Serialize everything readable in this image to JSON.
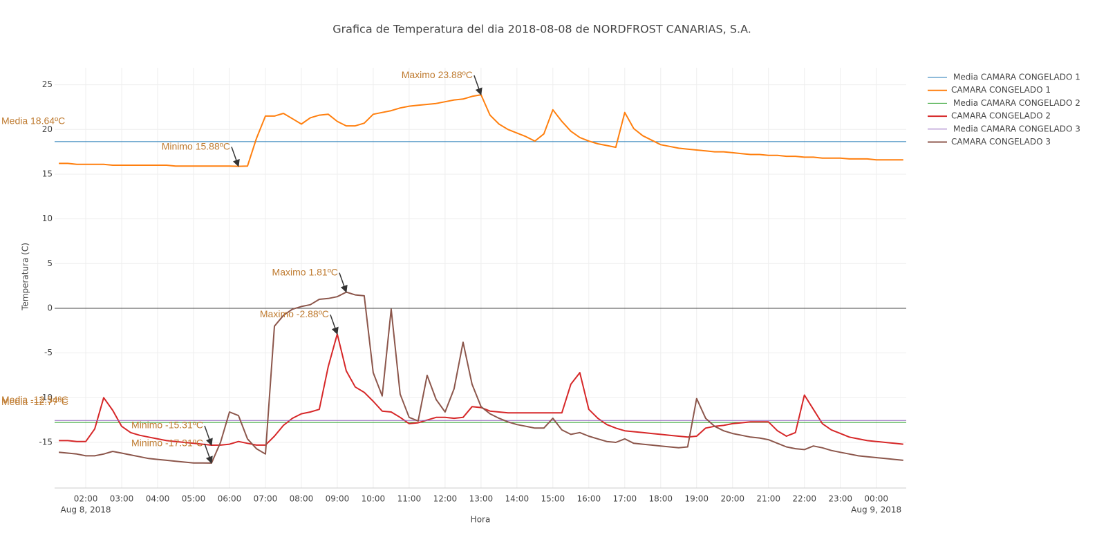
{
  "chart_data": {
    "type": "line",
    "title": "Grafica de Temperatura del dia 2018-08-08 de NORDFROST CANARIAS, S.A.",
    "xlabel": "Hora",
    "ylabel": "Temperatura (C)",
    "x": [
      "2018-08-08 01:15",
      "2018-08-08 01:30",
      "2018-08-08 01:45",
      "2018-08-08 02:00",
      "2018-08-08 02:15",
      "2018-08-08 02:30",
      "2018-08-08 02:45",
      "2018-08-08 03:00",
      "2018-08-08 03:15",
      "2018-08-08 03:30",
      "2018-08-08 03:45",
      "2018-08-08 04:00",
      "2018-08-08 04:15",
      "2018-08-08 04:30",
      "2018-08-08 04:45",
      "2018-08-08 05:00",
      "2018-08-08 05:15",
      "2018-08-08 05:30",
      "2018-08-08 05:45",
      "2018-08-08 06:00",
      "2018-08-08 06:15",
      "2018-08-08 06:30",
      "2018-08-08 06:45",
      "2018-08-08 07:00",
      "2018-08-08 07:15",
      "2018-08-08 07:30",
      "2018-08-08 07:45",
      "2018-08-08 08:00",
      "2018-08-08 08:15",
      "2018-08-08 08:30",
      "2018-08-08 08:45",
      "2018-08-08 09:00",
      "2018-08-08 09:15",
      "2018-08-08 09:30",
      "2018-08-08 09:45",
      "2018-08-08 10:00",
      "2018-08-08 10:15",
      "2018-08-08 10:30",
      "2018-08-08 10:45",
      "2018-08-08 11:00",
      "2018-08-08 11:15",
      "2018-08-08 11:30",
      "2018-08-08 11:45",
      "2018-08-08 12:00",
      "2018-08-08 12:15",
      "2018-08-08 12:30",
      "2018-08-08 12:45",
      "2018-08-08 13:00",
      "2018-08-08 13:15",
      "2018-08-08 13:30",
      "2018-08-08 13:45",
      "2018-08-08 14:00",
      "2018-08-08 14:15",
      "2018-08-08 14:30",
      "2018-08-08 14:45",
      "2018-08-08 15:00",
      "2018-08-08 15:15",
      "2018-08-08 15:30",
      "2018-08-08 15:45",
      "2018-08-08 16:00",
      "2018-08-08 16:15",
      "2018-08-08 16:30",
      "2018-08-08 16:45",
      "2018-08-08 17:00",
      "2018-08-08 17:15",
      "2018-08-08 17:30",
      "2018-08-08 17:45",
      "2018-08-08 18:00",
      "2018-08-08 18:15",
      "2018-08-08 18:30",
      "2018-08-08 18:45",
      "2018-08-08 19:00",
      "2018-08-08 19:15",
      "2018-08-08 19:30",
      "2018-08-08 19:45",
      "2018-08-08 20:00",
      "2018-08-08 20:15",
      "2018-08-08 20:30",
      "2018-08-08 20:45",
      "2018-08-08 21:00",
      "2018-08-08 21:15",
      "2018-08-08 21:30",
      "2018-08-08 21:45",
      "2018-08-08 22:00",
      "2018-08-08 22:15",
      "2018-08-08 22:30",
      "2018-08-08 22:45",
      "2018-08-08 23:00",
      "2018-08-08 23:15",
      "2018-08-08 23:30",
      "2018-08-08 23:45",
      "2018-08-09 00:00",
      "2018-08-09 00:15",
      "2018-08-09 00:30",
      "2018-08-09 00:45"
    ],
    "series": [
      {
        "name": "Media CAMARA CONGELADO 1",
        "color": "#1f77b4",
        "value": 18.64
      },
      {
        "name": "CAMARA CONGELADO 1",
        "color": "#ff7f0e",
        "values": [
          16.2,
          16.2,
          16.1,
          16.1,
          16.1,
          16.1,
          16.0,
          16.0,
          16.0,
          16.0,
          16.0,
          16.0,
          16.0,
          15.9,
          15.9,
          15.9,
          15.9,
          15.9,
          15.9,
          15.9,
          15.88,
          15.9,
          19.0,
          21.5,
          21.5,
          21.8,
          21.2,
          20.6,
          21.3,
          21.6,
          21.7,
          20.9,
          20.4,
          20.4,
          20.7,
          21.7,
          21.9,
          22.1,
          22.4,
          22.6,
          22.7,
          22.8,
          22.9,
          23.1,
          23.3,
          23.4,
          23.7,
          23.88,
          21.6,
          20.6,
          20.0,
          19.6,
          19.2,
          18.7,
          19.5,
          22.2,
          20.9,
          19.8,
          19.1,
          18.7,
          18.4,
          18.2,
          18.0,
          21.9,
          20.1,
          19.3,
          18.8,
          18.3,
          18.1,
          17.9,
          17.8,
          17.7,
          17.6,
          17.5,
          17.5,
          17.4,
          17.3,
          17.2,
          17.2,
          17.1,
          17.1,
          17.0,
          17.0,
          16.9,
          16.9,
          16.8,
          16.8,
          16.8,
          16.7,
          16.7,
          16.7,
          16.6,
          16.6,
          16.6,
          16.6
        ]
      },
      {
        "name": "Media CAMARA CONGELADO 2",
        "color": "#2ca02c",
        "value": -12.77
      },
      {
        "name": "CAMARA CONGELADO 2",
        "color": "#d62728",
        "values": [
          -14.8,
          -14.8,
          -14.9,
          -14.9,
          -13.5,
          -10.0,
          -11.4,
          -13.2,
          -13.9,
          -14.2,
          -14.4,
          -14.6,
          -14.8,
          -14.9,
          -15.0,
          -15.1,
          -15.2,
          -15.31,
          -15.3,
          -15.2,
          -14.9,
          -15.1,
          -15.3,
          -15.3,
          -14.3,
          -13.1,
          -12.3,
          -11.8,
          -11.6,
          -11.3,
          -6.5,
          -2.88,
          -7.0,
          -8.8,
          -9.4,
          -10.4,
          -11.5,
          -11.6,
          -12.2,
          -12.9,
          -12.8,
          -12.5,
          -12.2,
          -12.2,
          -12.3,
          -12.2,
          -11.0,
          -11.1,
          -11.5,
          -11.6,
          -11.7,
          -11.7,
          -11.7,
          -11.7,
          -11.7,
          -11.7,
          -11.7,
          -8.5,
          -7.2,
          -11.3,
          -12.3,
          -13.0,
          -13.4,
          -13.7,
          -13.8,
          -13.9,
          -14.0,
          -14.1,
          -14.2,
          -14.3,
          -14.4,
          -14.3,
          -13.4,
          -13.2,
          -13.1,
          -12.9,
          -12.8,
          -12.7,
          -12.7,
          -12.7,
          -13.7,
          -14.3,
          -13.9,
          -9.7,
          -11.3,
          -12.9,
          -13.6,
          -14.0,
          -14.4,
          -14.6,
          -14.8,
          -14.9,
          -15.0,
          -15.1,
          -15.2
        ]
      },
      {
        "name": "Media CAMARA CONGELADO 3",
        "color": "#9467bd",
        "value": -12.54
      },
      {
        "name": "CAMARA CONGELADO 3",
        "color": "#8c564b",
        "values": [
          -16.1,
          -16.2,
          -16.3,
          -16.5,
          -16.5,
          -16.3,
          -16.0,
          -16.2,
          -16.4,
          -16.6,
          -16.8,
          -16.9,
          -17.0,
          -17.1,
          -17.2,
          -17.3,
          -17.3,
          -17.31,
          -15.0,
          -11.6,
          -12.0,
          -14.6,
          -15.7,
          -16.3,
          -2.0,
          -0.8,
          -0.1,
          0.2,
          0.4,
          1.0,
          1.1,
          1.3,
          1.81,
          1.5,
          1.4,
          -7.2,
          -9.8,
          -0.1,
          -9.6,
          -12.2,
          -12.6,
          -7.5,
          -10.2,
          -11.6,
          -9.0,
          -3.8,
          -8.5,
          -11.0,
          -11.8,
          -12.3,
          -12.7,
          -13.0,
          -13.2,
          -13.4,
          -13.4,
          -12.3,
          -13.6,
          -14.1,
          -13.9,
          -14.3,
          -14.6,
          -14.9,
          -15.0,
          -14.6,
          -15.1,
          -15.2,
          -15.3,
          -15.4,
          -15.5,
          -15.6,
          -15.5,
          -10.1,
          -12.3,
          -13.2,
          -13.7,
          -14.0,
          -14.2,
          -14.4,
          -14.5,
          -14.7,
          -15.1,
          -15.5,
          -15.7,
          -15.8,
          -15.4,
          -15.6,
          -15.9,
          -16.1,
          -16.3,
          -16.5,
          -16.6,
          -16.7,
          -16.8,
          -16.9,
          -17.0
        ]
      }
    ],
    "annotations": [
      {
        "text": "Media 18.64ºC",
        "y": 18.64
      },
      {
        "text": "Minimo 15.88ºC",
        "x": "2018-08-08 06:15",
        "y": 15.88
      },
      {
        "text": "Maximo 23.88ºC",
        "x": "2018-08-08 13:00",
        "y": 23.88
      },
      {
        "text": "Media -12.77ºC",
        "y": -12.77
      },
      {
        "text": "Minimo -15.31ºC",
        "x": "2018-08-08 05:30",
        "y": -15.31
      },
      {
        "text": "Maximo -2.88ºC",
        "x": "2018-08-08 09:00",
        "y": -2.88
      },
      {
        "text": "Media -12.54ºC",
        "y": -12.54
      },
      {
        "text": "Minimo -17.31ºC",
        "x": "2018-08-08 05:30",
        "y": -17.31
      },
      {
        "text": "Maximo 1.81ºC",
        "x": "2018-08-08 09:15",
        "y": 1.81
      }
    ],
    "annotation_color": "#bf7b30",
    "xlim": [
      "2018-08-08 01:08",
      "2018-08-09 00:50"
    ],
    "xticks": [
      {
        "value": "2018-08-08 02:00",
        "label": "02:00"
      },
      {
        "value": "2018-08-08 03:00",
        "label": "03:00"
      },
      {
        "value": "2018-08-08 04:00",
        "label": "04:00"
      },
      {
        "value": "2018-08-08 05:00",
        "label": "05:00"
      },
      {
        "value": "2018-08-08 06:00",
        "label": "06:00"
      },
      {
        "value": "2018-08-08 07:00",
        "label": "07:00"
      },
      {
        "value": "2018-08-08 08:00",
        "label": "08:00"
      },
      {
        "value": "2018-08-08 09:00",
        "label": "09:00"
      },
      {
        "value": "2018-08-08 10:00",
        "label": "10:00"
      },
      {
        "value": "2018-08-08 11:00",
        "label": "11:00"
      },
      {
        "value": "2018-08-08 12:00",
        "label": "12:00"
      },
      {
        "value": "2018-08-08 13:00",
        "label": "13:00"
      },
      {
        "value": "2018-08-08 14:00",
        "label": "14:00"
      },
      {
        "value": "2018-08-08 15:00",
        "label": "15:00"
      },
      {
        "value": "2018-08-08 16:00",
        "label": "16:00"
      },
      {
        "value": "2018-08-08 17:00",
        "label": "17:00"
      },
      {
        "value": "2018-08-08 18:00",
        "label": "18:00"
      },
      {
        "value": "2018-08-08 19:00",
        "label": "19:00"
      },
      {
        "value": "2018-08-08 20:00",
        "label": "20:00"
      },
      {
        "value": "2018-08-08 21:00",
        "label": "21:00"
      },
      {
        "value": "2018-08-08 22:00",
        "label": "22:00"
      },
      {
        "value": "2018-08-08 23:00",
        "label": "23:00"
      },
      {
        "value": "2018-08-09 00:00",
        "label": "00:00"
      }
    ],
    "xtick_dates": [
      {
        "value": "2018-08-08 02:00",
        "label": "Aug 8, 2018"
      },
      {
        "value": "2018-08-09 00:00",
        "label": "Aug 9, 2018"
      }
    ],
    "ylim": [
      -20.1,
      26.9
    ],
    "yticks": [
      -15,
      -10,
      -5,
      0,
      5,
      10,
      15,
      20,
      25
    ],
    "grid": true,
    "zeroline": true,
    "legend": "right"
  }
}
